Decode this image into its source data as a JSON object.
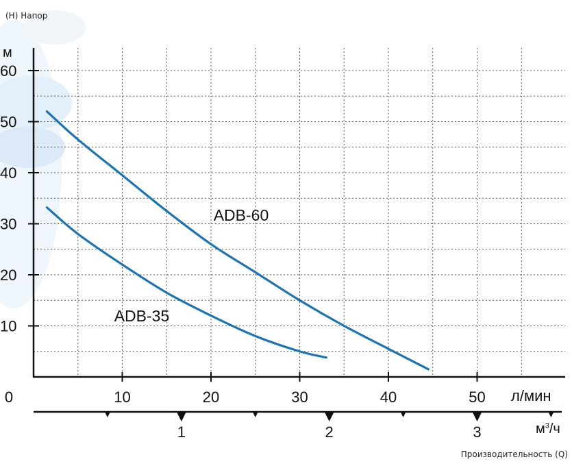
{
  "labels": {
    "head": "(H) Напор",
    "head_unit": "м",
    "flow": "Производительность (Q)",
    "flow_unit_lmin": "л/мин",
    "flow_unit_m3h_base": "м",
    "flow_unit_m3h_sup": "3",
    "flow_unit_m3h_tail": "/ч"
  },
  "colors": {
    "curve": "#1a74b3",
    "axis": "#111111",
    "grid": "#555555",
    "decor": "#cfe4f3"
  },
  "chart_data": {
    "type": "line",
    "title": "",
    "xlabel": "Производительность (Q)",
    "ylabel": "(H) Напор",
    "x_unit": "л/мин",
    "y_unit": "м",
    "xlim": [
      0,
      60
    ],
    "ylim": [
      0,
      65
    ],
    "x_ticks": [
      0,
      10,
      20,
      30,
      40,
      50
    ],
    "y_ticks": [
      10,
      20,
      30,
      40,
      50,
      60
    ],
    "secondary_x_axis": {
      "unit": "м³/ч",
      "ticks": [
        1,
        2,
        3
      ]
    },
    "grid": true,
    "series": [
      {
        "name": "ADB-60",
        "x": [
          1.5,
          5,
          10,
          15,
          20,
          25,
          30,
          35,
          40,
          44.5
        ],
        "y": [
          52,
          46.5,
          39.5,
          32.5,
          26,
          20.5,
          15,
          10,
          5.5,
          1.5
        ]
      },
      {
        "name": "ADB-35",
        "x": [
          1.5,
          5,
          10,
          15,
          20,
          25,
          30,
          33
        ],
        "y": [
          33.2,
          28,
          22,
          16.5,
          12,
          8,
          5,
          3.8
        ]
      }
    ]
  }
}
